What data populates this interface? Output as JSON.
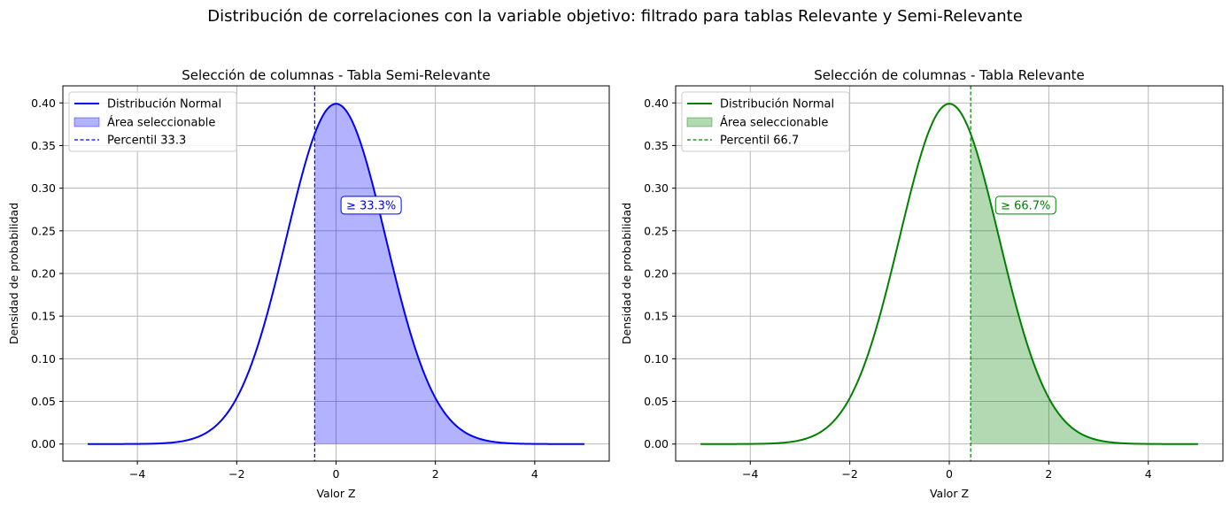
{
  "suptitle": "Distribución de correlaciones con la variable objetivo: filtrado para tablas Relevante y Semi-Relevante",
  "chart_data": [
    {
      "type": "area",
      "title": "Selección de columnas - Tabla Semi-Relevante",
      "xlabel": "Valor Z",
      "ylabel": "Densidad de probabilidad",
      "xlim": [
        -5.5,
        5.5
      ],
      "ylim": [
        -0.02,
        0.42
      ],
      "x_range": [
        -5,
        5
      ],
      "xticks": [
        -4,
        -2,
        0,
        2,
        4
      ],
      "xtick_labels": [
        "−4",
        "−2",
        "0",
        "2",
        "4"
      ],
      "yticks": [
        0.0,
        0.05,
        0.1,
        0.15,
        0.2,
        0.25,
        0.3,
        0.35,
        0.4
      ],
      "ytick_labels": [
        "0.00",
        "0.05",
        "0.10",
        "0.15",
        "0.20",
        "0.25",
        "0.30",
        "0.35",
        "0.40"
      ],
      "grid": true,
      "legend_position": "upper-left",
      "color": "#0000ff",
      "fill_color": "#0000ff",
      "fill_opacity": 0.3,
      "threshold_z": -0.43,
      "series": [
        {
          "name": "Distribución Normal",
          "kind": "line",
          "distribution": "standard normal pdf",
          "mean": 0,
          "std": 1,
          "peak": 0.399
        },
        {
          "name": "Área seleccionable",
          "kind": "fill",
          "from_z": -0.43,
          "to_z": 5
        },
        {
          "name": "Percentil 33.3",
          "kind": "vline",
          "x": -0.43
        }
      ],
      "annotation": {
        "text": "≥ 33.3%",
        "x": 0.1,
        "y": 0.28
      }
    },
    {
      "type": "area",
      "title": "Selección de columnas - Tabla Relevante",
      "xlabel": "Valor Z",
      "ylabel": "Densidad de probabilidad",
      "xlim": [
        -5.5,
        5.5
      ],
      "ylim": [
        -0.02,
        0.42
      ],
      "x_range": [
        -5,
        5
      ],
      "xticks": [
        -4,
        -2,
        0,
        2,
        4
      ],
      "xtick_labels": [
        "−4",
        "−2",
        "0",
        "2",
        "4"
      ],
      "yticks": [
        0.0,
        0.05,
        0.1,
        0.15,
        0.2,
        0.25,
        0.3,
        0.35,
        0.4
      ],
      "ytick_labels": [
        "0.00",
        "0.05",
        "0.10",
        "0.15",
        "0.20",
        "0.25",
        "0.30",
        "0.35",
        "0.40"
      ],
      "grid": true,
      "legend_position": "upper-left",
      "color": "#008000",
      "fill_color": "#008000",
      "fill_opacity": 0.3,
      "threshold_z": 0.43,
      "series": [
        {
          "name": "Distribución Normal",
          "kind": "line",
          "distribution": "standard normal pdf",
          "mean": 0,
          "std": 1,
          "peak": 0.399
        },
        {
          "name": "Área seleccionable",
          "kind": "fill",
          "from_z": 0.43,
          "to_z": 5
        },
        {
          "name": "Percentil 66.7",
          "kind": "vline",
          "x": 0.43
        }
      ],
      "annotation": {
        "text": "≥ 66.7%",
        "x": 0.93,
        "y": 0.28
      }
    }
  ]
}
